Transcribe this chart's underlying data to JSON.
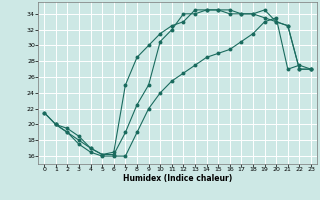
{
  "xlabel": "Humidex (Indice chaleur)",
  "bg_color": "#cde8e5",
  "grid_color": "#ffffff",
  "line_color": "#1a6b5e",
  "xlim": [
    -0.5,
    23.5
  ],
  "ylim": [
    15.0,
    35.5
  ],
  "xticks": [
    0,
    1,
    2,
    3,
    4,
    5,
    6,
    7,
    8,
    9,
    10,
    11,
    12,
    13,
    14,
    15,
    16,
    17,
    18,
    19,
    20,
    21,
    22,
    23
  ],
  "yticks": [
    16,
    18,
    20,
    22,
    24,
    26,
    28,
    30,
    32,
    34
  ],
  "line1_x": [
    0,
    1,
    2,
    3,
    4,
    5,
    6,
    7,
    8,
    9,
    10,
    11,
    12,
    13,
    14,
    15,
    16,
    17,
    18,
    19,
    20,
    21,
    22,
    23
  ],
  "line1_y": [
    21.5,
    20.0,
    19.0,
    18.0,
    17.0,
    16.2,
    16.2,
    19.0,
    22.5,
    25.0,
    30.5,
    32.0,
    34.0,
    34.0,
    34.5,
    34.5,
    34.0,
    34.0,
    34.0,
    33.5,
    33.0,
    32.5,
    27.0,
    27.0
  ],
  "line2_x": [
    0,
    1,
    2,
    3,
    4,
    5,
    6,
    7,
    8,
    9,
    10,
    11,
    12,
    13,
    14,
    15,
    16,
    17,
    18,
    19,
    20,
    21,
    22,
    23
  ],
  "line2_y": [
    21.5,
    20.0,
    19.0,
    17.5,
    16.5,
    16.0,
    16.0,
    16.0,
    19.0,
    22.0,
    24.0,
    25.5,
    26.5,
    27.5,
    28.5,
    29.0,
    29.5,
    30.5,
    31.5,
    33.0,
    33.5,
    27.0,
    27.5,
    27.0
  ],
  "line3_x": [
    1,
    2,
    3,
    4,
    5,
    6,
    7,
    8,
    9,
    10,
    11,
    12,
    13,
    14,
    15,
    16,
    17,
    18,
    19,
    20,
    21,
    22,
    23
  ],
  "line3_y": [
    20.0,
    19.5,
    18.5,
    17.0,
    16.2,
    16.5,
    25.0,
    28.5,
    30.0,
    31.5,
    32.5,
    33.0,
    34.5,
    34.5,
    34.5,
    34.5,
    34.0,
    34.0,
    34.5,
    33.0,
    32.5,
    27.0,
    27.0
  ]
}
